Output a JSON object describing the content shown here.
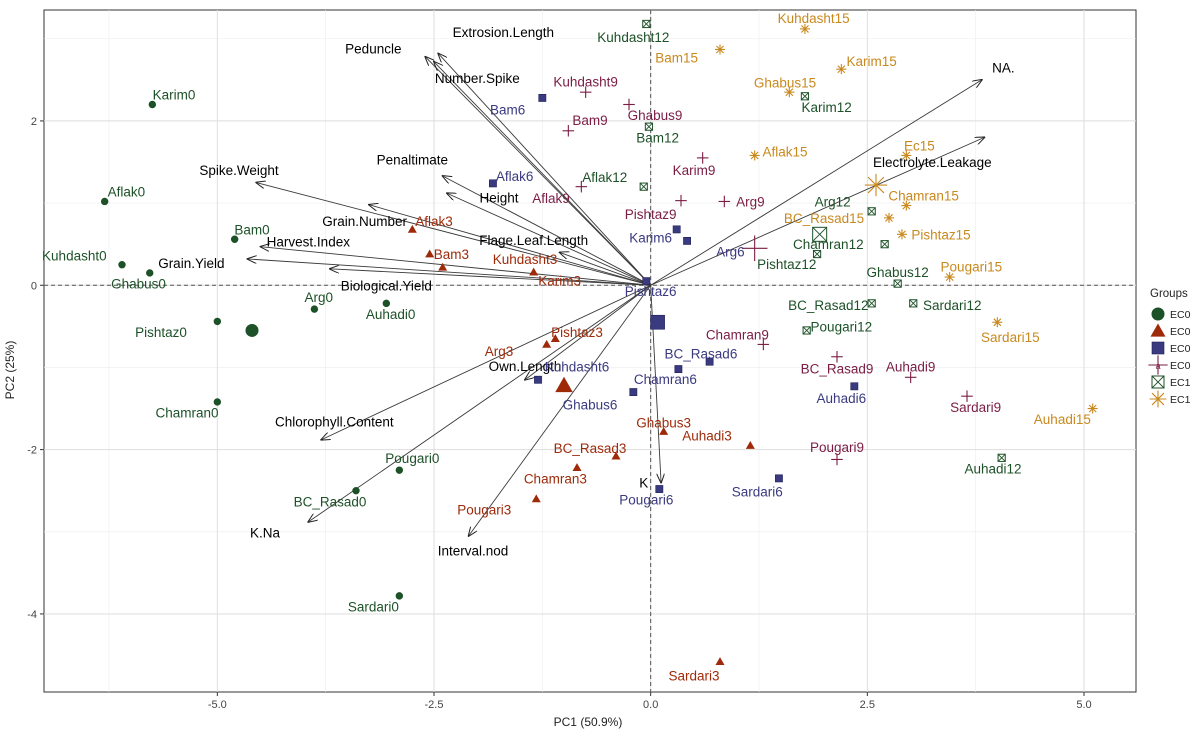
{
  "chart_data": {
    "type": "scatter",
    "title": "",
    "xlabel": "PC1 (50.9%)",
    "ylabel": "PC2 (25%)",
    "xlim": [
      -7.0,
      5.6
    ],
    "ylim": [
      -4.95,
      3.35
    ],
    "xticks": [
      -5.0,
      -2.5,
      0.0,
      2.5,
      5.0
    ],
    "xtick_labels": [
      "-5.0",
      "-2.5",
      "0.0",
      "2.5",
      "5.0"
    ],
    "yticks": [
      -4,
      -2,
      0,
      2
    ],
    "ytick_labels": [
      "-4",
      "-2",
      "0",
      "2"
    ],
    "grid": true,
    "legend": {
      "title": "Groups",
      "position": "right",
      "entries": [
        "EC0",
        "EC0",
        "EC0",
        "EC0",
        "EC1",
        "EC1"
      ]
    },
    "styles": {
      "g1": {
        "color": "#1d5128",
        "shape": "circle"
      },
      "g2": {
        "color": "#9e2a0a",
        "shape": "triangle"
      },
      "g3": {
        "color": "#3a3a80",
        "shape": "square"
      },
      "g4": {
        "color": "#7a1c43",
        "shape": "plus"
      },
      "g5": {
        "color": "#1d5128",
        "shape": "boxx"
      },
      "g6": {
        "color": "#c8891e",
        "shape": "star"
      }
    },
    "series": [
      {
        "style": "g1",
        "points": [
          {
            "label": "Karim0",
            "x": -5.75,
            "y": 2.2,
            "lx": 0.25,
            "ly": 0.12
          },
          {
            "label": "Aflak0",
            "x": -6.3,
            "y": 1.02,
            "lx": 0.25,
            "ly": 0.12
          },
          {
            "label": "Kuhdasht0",
            "x": -6.1,
            "y": 0.25,
            "lx": -0.55,
            "ly": 0.11
          },
          {
            "label": "Ghabus0",
            "x": -5.78,
            "y": 0.15,
            "lx": -0.13,
            "ly": -0.13
          },
          {
            "label": "Bam0",
            "x": -4.8,
            "y": 0.56,
            "lx": 0.2,
            "ly": 0.12
          },
          {
            "label": "Pishtaz0",
            "x": -5.0,
            "y": -0.44,
            "lx": -0.65,
            "ly": -0.13
          },
          {
            "label": "Arg0",
            "x": -3.88,
            "y": -0.29,
            "lx": 0.05,
            "ly": 0.15
          },
          {
            "label": "Auhadi0",
            "x": -3.05,
            "y": -0.22,
            "lx": 0.05,
            "ly": -0.13
          },
          {
            "label": "Chamran0",
            "x": -5.0,
            "y": -1.42,
            "lx": -0.35,
            "ly": -0.13
          },
          {
            "label": "Pougari0",
            "x": -2.9,
            "y": -2.25,
            "lx": 0.15,
            "ly": 0.15
          },
          {
            "label": "BC_Rasad0",
            "x": -3.4,
            "y": -2.5,
            "lx": -0.3,
            "ly": -0.13
          },
          {
            "label": "Sardari0",
            "x": -2.9,
            "y": -3.78,
            "lx": -0.3,
            "ly": -0.13
          }
        ]
      },
      {
        "style": "g2",
        "points": [
          {
            "label": "Aflak3",
            "x": -2.75,
            "y": 0.68,
            "lx": 0.25,
            "ly": 0.1
          },
          {
            "label": "Bam3",
            "x": -2.55,
            "y": 0.38,
            "lx": 0.25,
            "ly": 0.0
          },
          {
            "label": "Kuhdasht3",
            "x": -2.4,
            "y": 0.22,
            "lx": 0.95,
            "ly": 0.1
          },
          {
            "label": "Karim3",
            "x": -1.35,
            "y": 0.16,
            "lx": 0.3,
            "ly": -0.1
          },
          {
            "label": "Pishtaz3",
            "x": -1.1,
            "y": -0.65,
            "lx": 0.25,
            "ly": 0.08
          },
          {
            "label": "Arg3",
            "x": -1.2,
            "y": -0.72,
            "lx": -0.55,
            "ly": -0.08
          },
          {
            "label": "Chamran3",
            "x": -0.85,
            "y": -2.22,
            "lx": -0.25,
            "ly": -0.13
          },
          {
            "label": "Pougari3",
            "x": -1.32,
            "y": -2.6,
            "lx": -0.6,
            "ly": -0.13
          },
          {
            "label": "BC_Rasad3",
            "x": -0.4,
            "y": -2.08,
            "lx": -0.3,
            "ly": 0.1
          },
          {
            "label": "Ghabus3",
            "x": 0.15,
            "y": -1.78,
            "lx": 0.0,
            "ly": 0.11
          },
          {
            "label": "Auhadi3",
            "x": 1.15,
            "y": -1.95,
            "lx": -0.5,
            "ly": 0.12
          },
          {
            "label": "Sardari3",
            "x": 0.8,
            "y": -4.58,
            "lx": -0.3,
            "ly": -0.17
          }
        ]
      },
      {
        "style": "g3",
        "points": [
          {
            "label": "Bam6",
            "x": -1.25,
            "y": 2.28,
            "lx": -0.4,
            "ly": -0.14
          },
          {
            "label": "Aflak6",
            "x": -1.82,
            "y": 1.24,
            "lx": 0.25,
            "ly": 0.09
          },
          {
            "label": "Karim6",
            "x": 0.3,
            "y": 0.68,
            "lx": -0.3,
            "ly": -0.1
          },
          {
            "label": "Arg6",
            "x": 0.42,
            "y": 0.54,
            "lx": 0.5,
            "ly": -0.13
          },
          {
            "label": "Pishtaz6",
            "x": -0.05,
            "y": 0.05,
            "lx": 0.05,
            "ly": -0.12
          },
          {
            "label": "Kuhdasht6",
            "x": -1.3,
            "y": -1.15,
            "lx": 0.45,
            "ly": 0.16
          },
          {
            "label": "BC_Rasad6",
            "x": 0.68,
            "y": -0.93,
            "lx": -0.1,
            "ly": 0.1
          },
          {
            "label": "Chamran6",
            "x": 0.32,
            "y": -1.02,
            "lx": -0.15,
            "ly": -0.12
          },
          {
            "label": "Ghabus6",
            "x": -0.2,
            "y": -1.3,
            "lx": -0.5,
            "ly": -0.15
          },
          {
            "label": "Auhadi6",
            "x": 2.35,
            "y": -1.23,
            "lx": -0.15,
            "ly": -0.14
          },
          {
            "label": "Sardari6",
            "x": 1.48,
            "y": -2.35,
            "lx": -0.25,
            "ly": -0.16
          },
          {
            "label": "Pougari6",
            "x": 0.1,
            "y": -2.48,
            "lx": -0.15,
            "ly": -0.13
          }
        ]
      },
      {
        "style": "g4",
        "points": [
          {
            "label": "Kuhdasht9",
            "x": -0.75,
            "y": 2.35,
            "lx": 0.0,
            "ly": 0.13
          },
          {
            "label": "Bam9",
            "x": -0.95,
            "y": 1.88,
            "lx": 0.25,
            "ly": 0.13
          },
          {
            "label": "Ghabus9",
            "x": -0.25,
            "y": 2.2,
            "lx": 0.3,
            "ly": -0.13
          },
          {
            "label": "Aflak9",
            "x": -0.8,
            "y": 1.2,
            "lx": -0.35,
            "ly": -0.14
          },
          {
            "label": "Karim9",
            "x": 0.6,
            "y": 1.55,
            "lx": -0.1,
            "ly": -0.15
          },
          {
            "label": "Arg9",
            "x": 0.85,
            "y": 1.02,
            "lx": 0.3,
            "ly": 0.0
          },
          {
            "label": "Pishtaz9",
            "x": 0.35,
            "y": 1.03,
            "lx": -0.35,
            "ly": -0.16
          },
          {
            "label": "Chamran9",
            "x": 1.3,
            "y": -0.72,
            "lx": -0.3,
            "ly": 0.12
          },
          {
            "label": "BC_Rasad9",
            "x": 2.15,
            "y": -0.87,
            "lx": 0.0,
            "ly": -0.14
          },
          {
            "label": "Auhadi9",
            "x": 3.0,
            "y": -1.12,
            "lx": 0.0,
            "ly": 0.13
          },
          {
            "label": "Sardari9",
            "x": 3.65,
            "y": -1.35,
            "lx": 0.1,
            "ly": -0.13
          },
          {
            "label": "Pougari9",
            "x": 2.15,
            "y": -2.12,
            "lx": 0.0,
            "ly": 0.15
          }
        ]
      },
      {
        "style": "g5",
        "points": [
          {
            "label": "Kuhdasht12",
            "x": -0.05,
            "y": 3.18,
            "lx": -0.15,
            "ly": -0.16
          },
          {
            "label": "Bam12",
            "x": -0.02,
            "y": 1.93,
            "lx": 0.1,
            "ly": -0.13
          },
          {
            "label": "Aflak12",
            "x": -0.08,
            "y": 1.2,
            "lx": -0.45,
            "ly": 0.12
          },
          {
            "label": "Karim12",
            "x": 1.78,
            "y": 2.3,
            "lx": 0.25,
            "ly": -0.13
          },
          {
            "label": "Arg12",
            "x": 2.55,
            "y": 0.9,
            "lx": -0.45,
            "ly": 0.12
          },
          {
            "label": "Chamran12",
            "x": 2.7,
            "y": 0.5,
            "lx": -0.65,
            "ly": 0.0
          },
          {
            "label": "Pishtaz12",
            "x": 1.92,
            "y": 0.38,
            "lx": -0.35,
            "ly": -0.12
          },
          {
            "label": "Ghabus12",
            "x": 2.85,
            "y": 0.02,
            "lx": 0.0,
            "ly": 0.14
          },
          {
            "label": "BC_Rasad12",
            "x": 2.55,
            "y": -0.22,
            "lx": -0.5,
            "ly": -0.02
          },
          {
            "label": "Sardari12",
            "x": 3.03,
            "y": -0.22,
            "lx": 0.45,
            "ly": -0.02
          },
          {
            "label": "Pougari12",
            "x": 1.8,
            "y": -0.55,
            "lx": 0.4,
            "ly": 0.05
          },
          {
            "label": "Auhadi12",
            "x": 4.05,
            "y": -2.1,
            "lx": -0.1,
            "ly": -0.13
          }
        ]
      },
      {
        "style": "g6",
        "points": [
          {
            "label": "Kuhdasht15",
            "x": 1.78,
            "y": 3.12,
            "lx": 0.1,
            "ly": 0.13
          },
          {
            "label": "Bam15",
            "x": 0.8,
            "y": 2.87,
            "lx": -0.5,
            "ly": -0.1
          },
          {
            "label": "Karim15",
            "x": 2.2,
            "y": 2.63,
            "lx": 0.35,
            "ly": 0.1
          },
          {
            "label": "Ghabus15",
            "x": 1.6,
            "y": 2.35,
            "lx": -0.05,
            "ly": 0.12
          },
          {
            "label": "Aflak15",
            "x": 1.2,
            "y": 1.58,
            "lx": 0.35,
            "ly": 0.05
          },
          {
            "label": "Pishtaz15",
            "x": 2.9,
            "y": 0.62,
            "lx": 0.45,
            "ly": 0.0
          },
          {
            "label": "Chamran15",
            "x": 2.95,
            "y": 0.97,
            "lx": 0.2,
            "ly": 0.12
          },
          {
            "label": "BC_Rasad15",
            "x": 2.75,
            "y": 0.82,
            "lx": -0.75,
            "ly": 0.0
          },
          {
            "label": "Pougari15",
            "x": 3.45,
            "y": 0.1,
            "lx": 0.25,
            "ly": 0.13
          },
          {
            "label": "Sardari15",
            "x": 4.0,
            "y": -0.45,
            "lx": 0.15,
            "ly": -0.18
          },
          {
            "label": "Auhadi15",
            "x": 5.1,
            "y": -1.5,
            "lx": -0.35,
            "ly": -0.13
          },
          {
            "label": "Ec15",
            "x": 2.95,
            "y": 1.58,
            "lx": 0.15,
            "ly": 0.12
          }
        ]
      }
    ],
    "centroids": [
      {
        "style": "g1",
        "x": -4.6,
        "y": -0.55
      },
      {
        "style": "g2",
        "x": -1.0,
        "y": -1.22
      },
      {
        "style": "g3",
        "x": 0.08,
        "y": -0.45
      },
      {
        "style": "g4",
        "x": 1.2,
        "y": 0.45
      },
      {
        "style": "g5",
        "x": 1.95,
        "y": 0.62
      },
      {
        "style": "g6",
        "x": 2.6,
        "y": 1.22
      }
    ],
    "loadings": [
      {
        "label": "NA.",
        "x": 3.82,
        "y": 2.5,
        "lx": 0.25,
        "ly": 0.15
      },
      {
        "label": "Electrolyte.Leakage",
        "x": 3.85,
        "y": 1.8,
        "lx": -0.6,
        "ly": -0.3
      },
      {
        "label": "Extrosion.Length",
        "x": -2.45,
        "y": 2.82,
        "lx": 0.75,
        "ly": 0.26
      },
      {
        "label": "Peduncle",
        "x": -2.6,
        "y": 2.78,
        "lx": -0.6,
        "ly": 0.1
      },
      {
        "label": "Number.Spike",
        "x": -2.5,
        "y": 2.72,
        "lx": 0.5,
        "ly": -0.2
      },
      {
        "label": "Spike.Weight",
        "x": -4.55,
        "y": 1.25,
        "lx": -0.2,
        "ly": 0.15
      },
      {
        "label": "Penaltimate",
        "x": -2.4,
        "y": 1.33,
        "lx": -0.35,
        "ly": 0.2
      },
      {
        "label": "Height",
        "x": -2.35,
        "y": 1.12,
        "lx": 0.6,
        "ly": -0.05
      },
      {
        "label": "Grain.Number",
        "x": -3.25,
        "y": 0.98,
        "lx": -0.05,
        "ly": -0.2
      },
      {
        "label": "Flage.Leaf.Length",
        "x": -1.05,
        "y": 0.4,
        "lx": -0.3,
        "ly": 0.15
      },
      {
        "label": "Harvest.Index",
        "x": -4.5,
        "y": 0.47,
        "lx": 0.55,
        "ly": 0.06
      },
      {
        "label": "Grain.Yield",
        "x": -4.65,
        "y": 0.32,
        "lx": -0.65,
        "ly": -0.05
      },
      {
        "label": "Biological.Yield",
        "x": -3.7,
        "y": 0.2,
        "lx": 0.65,
        "ly": -0.2
      },
      {
        "label": "Own.Length",
        "x": -1.45,
        "y": -1.15,
        "lx": 0.0,
        "ly": 0.17
      },
      {
        "label": "Chlorophyll.Content",
        "x": -3.8,
        "y": -1.88,
        "lx": 0.15,
        "ly": 0.22
      },
      {
        "label": "K.Na",
        "x": -3.95,
        "y": -2.88,
        "lx": -0.5,
        "ly": -0.13
      },
      {
        "label": "Interval.nod",
        "x": -2.1,
        "y": -3.05,
        "lx": 0.05,
        "ly": -0.18
      },
      {
        "label": "K",
        "x": 0.12,
        "y": -2.4,
        "lx": -0.2,
        "ly": 0.0
      }
    ]
  }
}
